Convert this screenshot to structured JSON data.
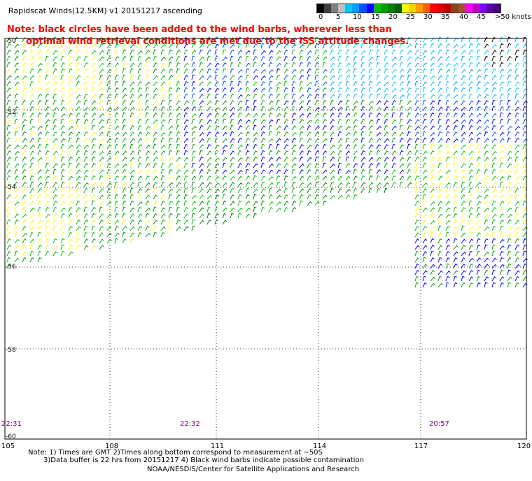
{
  "title": "Rapidscat Winds(12.5KM) v1 20151217 ascending",
  "note_line1": "Note: black circles have been added to the wind barbs, wherever less than",
  "note_line2": "      optimal wind retrieval conditions are met due to the ISS attitude changes.",
  "colorbar": {
    "colors": [
      "#000000",
      "#404040",
      "#808080",
      "#c0c0c0",
      "#00c8ff",
      "#00a0ff",
      "#0050ff",
      "#0000ff",
      "#00c000",
      "#00a000",
      "#008000",
      "#006000",
      "#ffff00",
      "#ffd000",
      "#ffa000",
      "#ff6000",
      "#ff0000",
      "#e00000",
      "#c00000",
      "#8b4513",
      "#a0522d",
      "#ff00ff",
      "#c000c0",
      "#8000ff",
      "#6000a0",
      "#400080"
    ],
    "labels": [
      "0",
      "5",
      "10",
      "15",
      "20",
      "25",
      "30",
      "35",
      "40",
      "45",
      ">50 knots"
    ]
  },
  "map": {
    "lon_ticks": [
      "105",
      "108",
      "111",
      "114",
      "117",
      "120"
    ],
    "lat_ticks": [
      "-50",
      "-52",
      "-54",
      "-56",
      "-58",
      "-60"
    ],
    "time_labels": [
      "22:31",
      "22:32",
      "20:57"
    ]
  },
  "footer": {
    "line1": "Note: 1) Times are GMT 2)Times along bottom correspond to measurement at ~50S",
    "line2": "3)Data buffer is 22 hrs from 20151217 4) Black wind barbs indicate possible contamination",
    "line3": "NOAA/NESDIS/Center for Satellite Applications and Research"
  }
}
